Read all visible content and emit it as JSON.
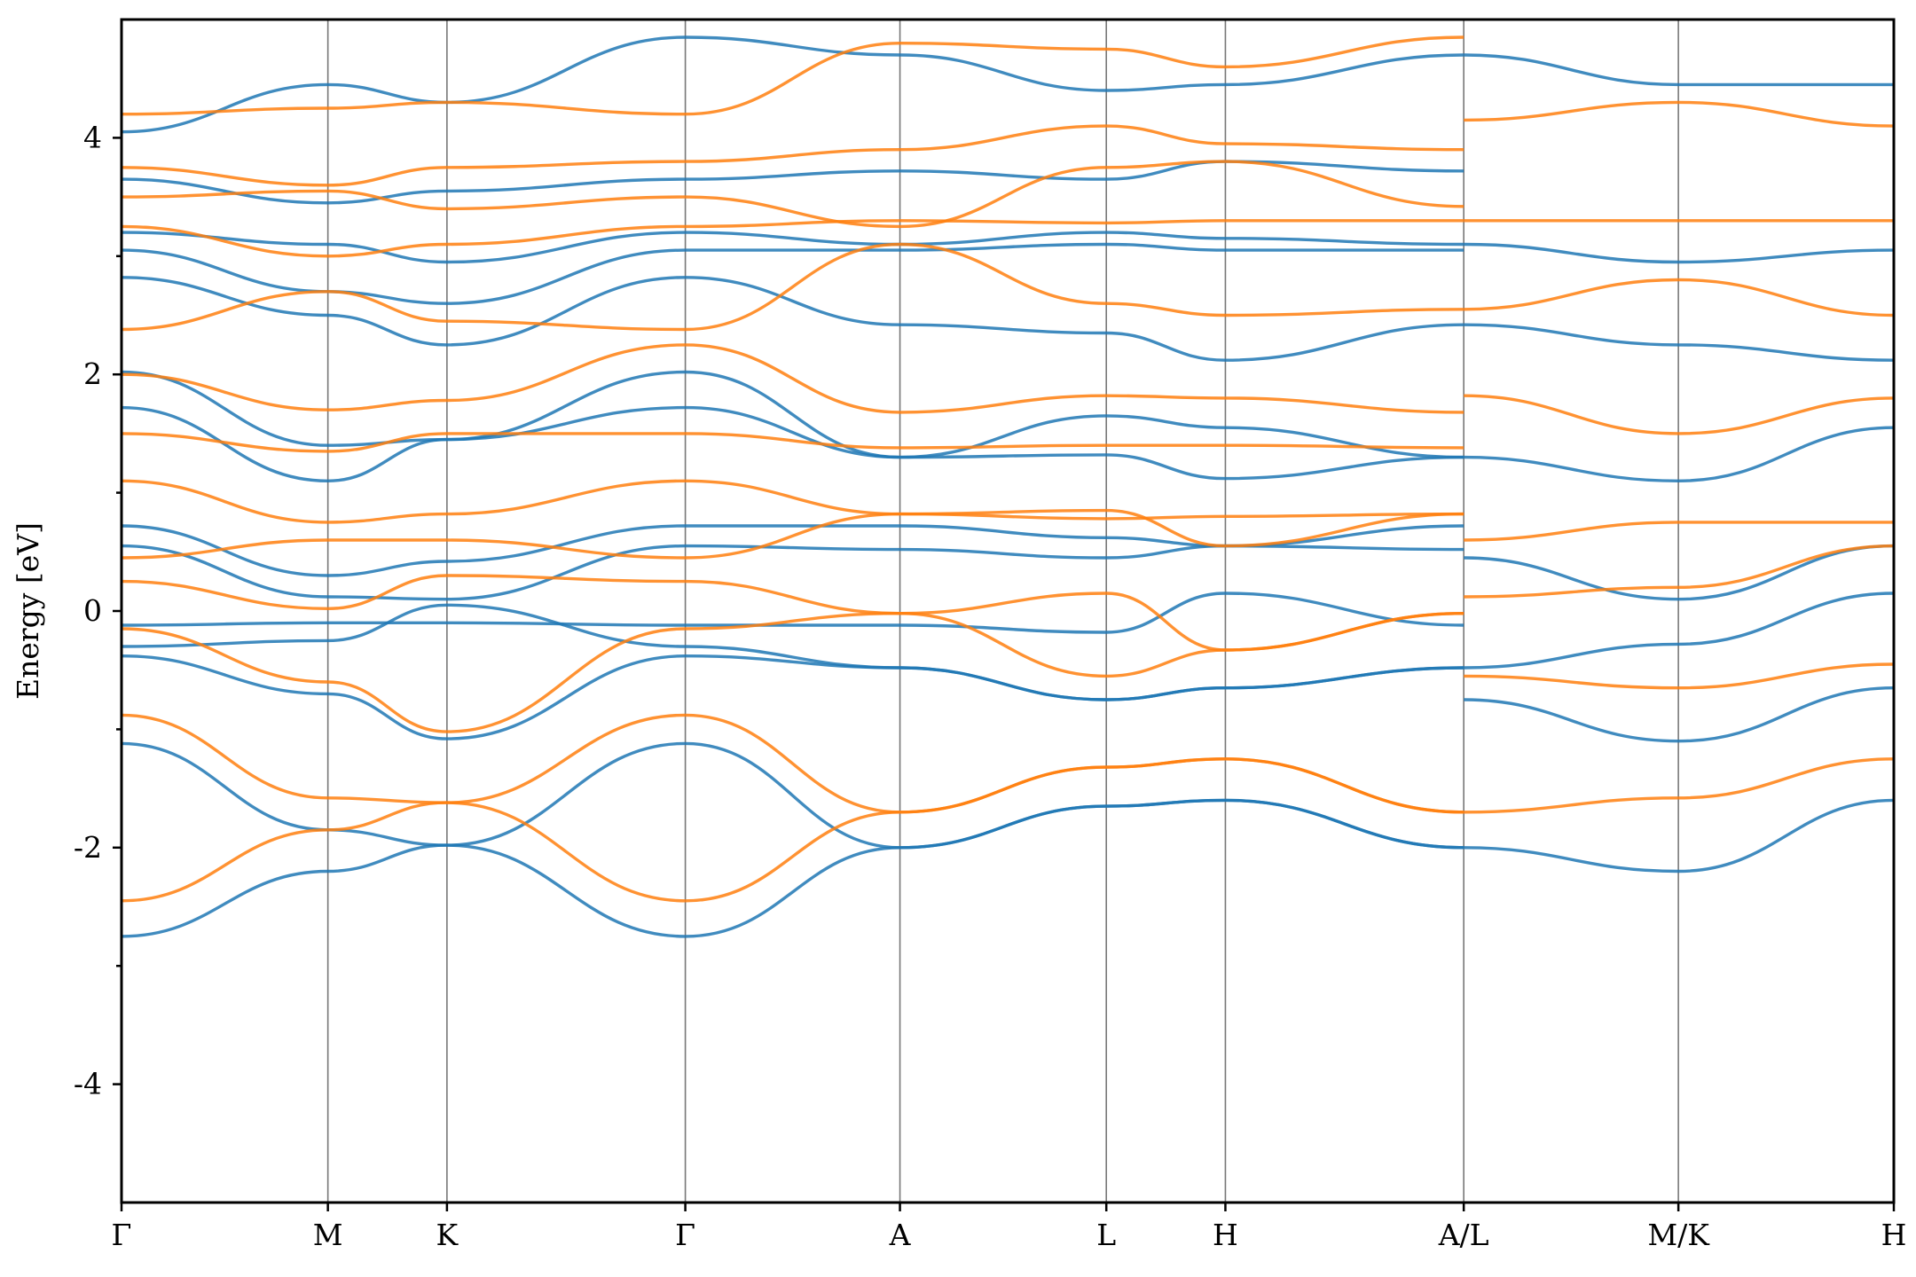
{
  "chart_data": {
    "type": "line",
    "title": "",
    "xlabel": "",
    "ylabel": "Energy [eV]",
    "ylim": [
      -5,
      5
    ],
    "yticks": [
      -4,
      -2,
      0,
      2,
      4
    ],
    "ytick_labels": [
      "-4",
      "-2",
      "0",
      "2",
      "4"
    ],
    "kpath_labels": [
      "Γ",
      "M",
      "K",
      "Γ",
      "A",
      "L",
      "H",
      "A/L",
      "M/K",
      "H"
    ],
    "kpath_positions": [
      0.0,
      1.0,
      1.577,
      2.732,
      3.772,
      4.772,
      5.349,
      6.504,
      7.544,
      8.588
    ],
    "grid": "vertical lines at high-symmetry points",
    "legend": "none",
    "series_colors": [
      "#1f77b4",
      "#ff7f0e"
    ],
    "series": [
      {
        "color": "#1f77b4",
        "bands": [
          {
            "x": [
              0,
              1.0,
              1.577,
              2.732,
              3.772,
              4.772,
              5.349,
              6.504
            ],
            "y": [
              -2.75,
              -2.2,
              -1.98,
              -2.75,
              -2.0,
              -1.65,
              -1.6,
              -2.0
            ]
          },
          {
            "x": [
              0,
              1.0,
              1.577,
              2.732,
              3.772,
              4.772,
              5.349,
              6.504
            ],
            "y": [
              -1.12,
              -1.85,
              -1.98,
              -1.12,
              -2.0,
              -1.65,
              -1.6,
              -2.0
            ]
          },
          {
            "x": [
              0,
              1.0,
              1.577,
              2.732,
              3.772,
              4.772,
              5.349,
              6.504
            ],
            "y": [
              -0.38,
              -0.7,
              -1.08,
              -0.38,
              -0.48,
              -0.75,
              -0.65,
              -0.48
            ]
          },
          {
            "x": [
              0,
              1.0,
              1.577,
              2.732,
              3.772,
              4.772,
              5.349,
              6.504
            ],
            "y": [
              -0.3,
              -0.25,
              0.05,
              -0.3,
              -0.48,
              -0.75,
              -0.65,
              -0.48
            ]
          },
          {
            "x": [
              0,
              1.0,
              1.577,
              2.732,
              3.772,
              4.772,
              5.349,
              6.504
            ],
            "y": [
              -0.12,
              -0.1,
              -0.1,
              -0.12,
              -0.12,
              -0.18,
              0.15,
              -0.12
            ]
          },
          {
            "x": [
              0,
              1.0,
              1.577,
              2.732,
              3.772,
              4.772,
              5.349,
              6.504
            ],
            "y": [
              0.55,
              0.12,
              0.1,
              0.55,
              0.52,
              0.45,
              0.55,
              0.52
            ]
          },
          {
            "x": [
              0,
              1.0,
              1.577,
              2.732,
              3.772,
              4.772,
              5.349,
              6.504
            ],
            "y": [
              0.72,
              0.3,
              0.42,
              0.72,
              0.72,
              0.62,
              0.55,
              0.72
            ]
          },
          {
            "x": [
              0,
              1.0,
              1.577,
              2.732,
              3.772,
              4.772,
              5.349,
              6.504
            ],
            "y": [
              1.72,
              1.1,
              1.45,
              1.72,
              1.3,
              1.32,
              1.12,
              1.3
            ]
          },
          {
            "x": [
              0,
              1.0,
              1.577,
              2.732,
              3.772,
              4.772,
              5.349,
              6.504
            ],
            "y": [
              2.02,
              1.4,
              1.45,
              2.02,
              1.3,
              1.65,
              1.55,
              1.3
            ]
          },
          {
            "x": [
              0,
              1.0,
              1.577,
              2.732,
              3.772,
              4.772,
              5.349,
              6.504
            ],
            "y": [
              2.82,
              2.5,
              2.25,
              2.82,
              2.42,
              2.35,
              2.12,
              2.42
            ]
          },
          {
            "x": [
              0,
              1.0,
              1.577,
              2.732,
              3.772,
              4.772,
              5.349,
              6.504
            ],
            "y": [
              3.05,
              2.7,
              2.6,
              3.05,
              3.05,
              3.1,
              3.05,
              3.05
            ]
          },
          {
            "x": [
              0,
              1.0,
              1.577,
              2.732,
              3.772,
              4.772,
              5.349,
              6.504
            ],
            "y": [
              3.2,
              3.1,
              2.95,
              3.2,
              3.1,
              3.2,
              3.15,
              3.1
            ]
          },
          {
            "x": [
              0,
              1.0,
              1.577,
              2.732,
              3.772,
              4.772,
              5.349,
              6.504
            ],
            "y": [
              3.65,
              3.45,
              3.55,
              3.65,
              3.72,
              3.65,
              3.8,
              3.72
            ]
          },
          {
            "x": [
              0,
              1.0,
              1.577,
              2.732,
              3.772,
              4.772,
              5.349,
              6.504
            ],
            "y": [
              4.05,
              4.45,
              4.3,
              4.85,
              4.7,
              4.4,
              4.45,
              4.7
            ]
          },
          {
            "x": [
              6.504,
              7.544,
              8.588
            ],
            "y": [
              -2.0,
              -2.2,
              -1.6
            ]
          },
          {
            "x": [
              6.504,
              7.544,
              8.588
            ],
            "y": [
              -0.75,
              -1.1,
              -0.65
            ]
          },
          {
            "x": [
              6.504,
              7.544,
              8.588
            ],
            "y": [
              -0.48,
              -0.28,
              0.15
            ]
          },
          {
            "x": [
              6.504,
              7.544,
              8.588
            ],
            "y": [
              0.45,
              0.1,
              0.55
            ]
          },
          {
            "x": [
              6.504,
              7.544,
              8.588
            ],
            "y": [
              1.3,
              1.1,
              1.55
            ]
          },
          {
            "x": [
              6.504,
              7.544,
              8.588
            ],
            "y": [
              2.42,
              2.25,
              2.12
            ]
          },
          {
            "x": [
              6.504,
              7.544,
              8.588
            ],
            "y": [
              3.1,
              2.95,
              3.05
            ]
          },
          {
            "x": [
              6.504,
              7.544,
              8.588
            ],
            "y": [
              4.7,
              4.45,
              4.45
            ]
          }
        ]
      },
      {
        "color": "#ff7f0e",
        "bands": [
          {
            "x": [
              0,
              1.0,
              1.577,
              2.732,
              3.772,
              4.772,
              5.349,
              6.504
            ],
            "y": [
              -2.45,
              -1.85,
              -1.62,
              -2.45,
              -1.7,
              -1.32,
              -1.25,
              -1.7
            ]
          },
          {
            "x": [
              0,
              1.0,
              1.577,
              2.732,
              3.772,
              4.772,
              5.349,
              6.504
            ],
            "y": [
              -0.88,
              -1.58,
              -1.62,
              -0.88,
              -1.7,
              -1.32,
              -1.25,
              -1.7
            ]
          },
          {
            "x": [
              0,
              1.0,
              1.577,
              2.732,
              3.772,
              4.772,
              5.349,
              6.504
            ],
            "y": [
              -0.15,
              -0.6,
              -1.02,
              -0.15,
              -0.02,
              -0.55,
              -0.33,
              -0.02
            ]
          },
          {
            "x": [
              0,
              1.0,
              1.577,
              2.732,
              3.772,
              4.772,
              5.349,
              6.504
            ],
            "y": [
              0.25,
              0.02,
              0.3,
              0.25,
              -0.02,
              0.15,
              -0.33,
              -0.02
            ]
          },
          {
            "x": [
              0,
              1.0,
              1.577,
              2.732,
              3.772,
              4.772,
              5.349,
              6.504
            ],
            "y": [
              0.45,
              0.6,
              0.6,
              0.45,
              0.82,
              0.85,
              0.55,
              0.82
            ]
          },
          {
            "x": [
              0,
              1.0,
              1.577,
              2.732,
              3.772,
              4.772,
              5.349,
              6.504
            ],
            "y": [
              1.1,
              0.75,
              0.82,
              1.1,
              0.82,
              0.78,
              0.8,
              0.82
            ]
          },
          {
            "x": [
              0,
              1.0,
              1.577,
              2.732,
              3.772,
              4.772,
              5.349,
              6.504
            ],
            "y": [
              1.5,
              1.35,
              1.5,
              1.5,
              1.38,
              1.4,
              1.4,
              1.38
            ]
          },
          {
            "x": [
              0,
              1.0,
              1.577,
              2.732,
              3.772,
              4.772,
              5.349,
              6.504
            ],
            "y": [
              2.0,
              1.7,
              1.78,
              2.25,
              1.68,
              1.82,
              1.8,
              1.68
            ]
          },
          {
            "x": [
              0,
              1.0,
              1.577,
              2.732,
              3.772,
              4.772,
              5.349,
              6.504
            ],
            "y": [
              2.38,
              2.7,
              2.45,
              2.38,
              3.1,
              2.6,
              2.5,
              2.55
            ]
          },
          {
            "x": [
              0,
              1.0,
              1.577,
              2.732,
              3.772,
              4.772,
              5.349,
              6.504
            ],
            "y": [
              3.25,
              3.0,
              3.1,
              3.25,
              3.3,
              3.28,
              3.3,
              3.3
            ]
          },
          {
            "x": [
              0,
              1.0,
              1.577,
              2.732,
              3.772,
              4.772,
              5.349,
              6.504
            ],
            "y": [
              3.5,
              3.55,
              3.4,
              3.5,
              3.25,
              3.75,
              3.8,
              3.42
            ]
          },
          {
            "x": [
              0,
              1.0,
              1.577,
              2.732,
              3.772,
              4.772,
              5.349,
              6.504
            ],
            "y": [
              3.75,
              3.6,
              3.75,
              3.8,
              3.9,
              4.1,
              3.95,
              3.9
            ]
          },
          {
            "x": [
              0,
              1.0,
              1.577,
              2.732,
              3.772,
              4.772,
              5.349,
              6.504
            ],
            "y": [
              4.2,
              4.25,
              4.3,
              4.2,
              4.8,
              4.75,
              4.6,
              4.85
            ]
          },
          {
            "x": [
              6.504,
              7.544,
              8.588
            ],
            "y": [
              -1.7,
              -1.58,
              -1.25
            ]
          },
          {
            "x": [
              6.504,
              7.544,
              8.588
            ],
            "y": [
              -0.55,
              -0.65,
              -0.45
            ]
          },
          {
            "x": [
              6.504,
              7.544,
              8.588
            ],
            "y": [
              0.12,
              0.2,
              0.55
            ]
          },
          {
            "x": [
              6.504,
              7.544,
              8.588
            ],
            "y": [
              0.6,
              0.75,
              0.75
            ]
          },
          {
            "x": [
              6.504,
              7.544,
              8.588
            ],
            "y": [
              1.82,
              1.5,
              1.8
            ]
          },
          {
            "x": [
              6.504,
              7.544,
              8.588
            ],
            "y": [
              2.55,
              2.8,
              2.5
            ]
          },
          {
            "x": [
              6.504,
              7.544,
              8.588
            ],
            "y": [
              3.3,
              3.3,
              3.3
            ]
          },
          {
            "x": [
              6.504,
              7.544,
              8.588
            ],
            "y": [
              4.15,
              4.3,
              4.1
            ]
          }
        ]
      }
    ]
  }
}
